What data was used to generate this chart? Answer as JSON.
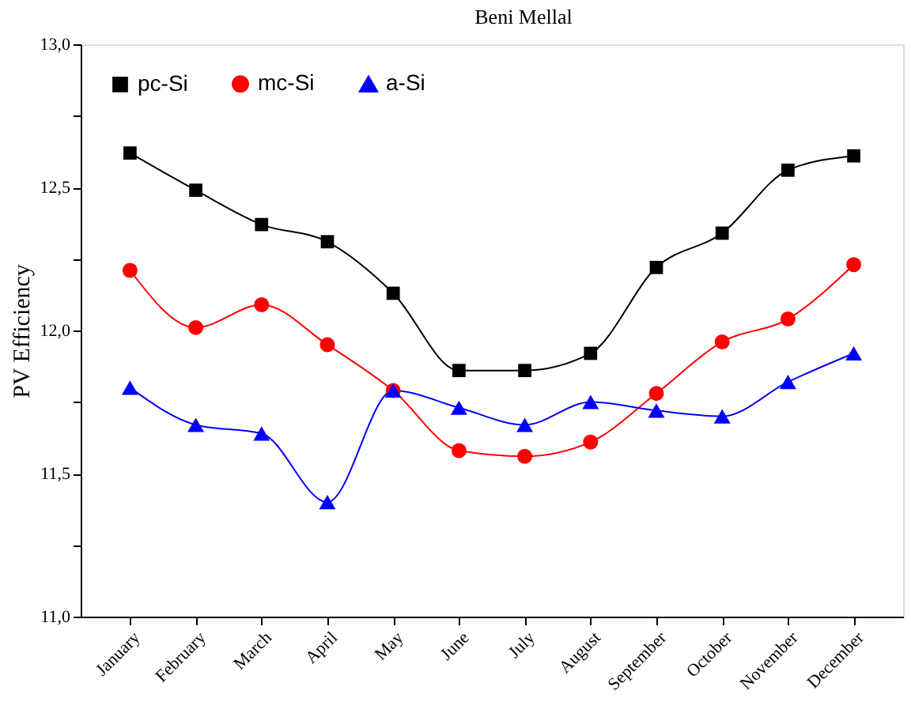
{
  "chart_data": {
    "type": "line",
    "title": "Beni Mellal",
    "ylabel": "PV Efficiency",
    "categories": [
      "January",
      "February",
      "March",
      "April",
      "May",
      "June",
      "July",
      "August",
      "September",
      "October",
      "November",
      "December"
    ],
    "series": [
      {
        "name": "pc-Si",
        "color": "#000000",
        "marker": "square",
        "values": [
          12.62,
          12.49,
          12.37,
          12.31,
          12.13,
          11.86,
          11.86,
          11.92,
          12.22,
          12.34,
          12.56,
          12.61
        ]
      },
      {
        "name": "mc-Si",
        "color": "#ff0000",
        "marker": "circle",
        "values": [
          12.21,
          12.01,
          12.09,
          11.95,
          11.79,
          11.58,
          11.56,
          11.61,
          11.78,
          11.96,
          12.04,
          12.23
        ]
      },
      {
        "name": "a-Si",
        "color": "#0000ff",
        "marker": "triangle",
        "values": [
          11.8,
          11.67,
          11.64,
          11.4,
          11.79,
          11.73,
          11.67,
          11.75,
          11.72,
          11.7,
          11.82,
          11.92
        ]
      }
    ],
    "ylim": [
      11,
      13
    ],
    "yticks": [
      {
        "value": 11,
        "label": "11,0"
      },
      {
        "value": 11.25,
        "label": null
      },
      {
        "value": 11.5,
        "label": "11,5"
      },
      {
        "value": 11.75,
        "label": null
      },
      {
        "value": 12,
        "label": "12,0"
      },
      {
        "value": 12.25,
        "label": null
      },
      {
        "value": 12.5,
        "label": "12,5"
      },
      {
        "value": 12.75,
        "label": null
      },
      {
        "value": 13,
        "label": "13,0"
      }
    ],
    "legend": "top left",
    "grid": false,
    "line_style": "solid"
  }
}
